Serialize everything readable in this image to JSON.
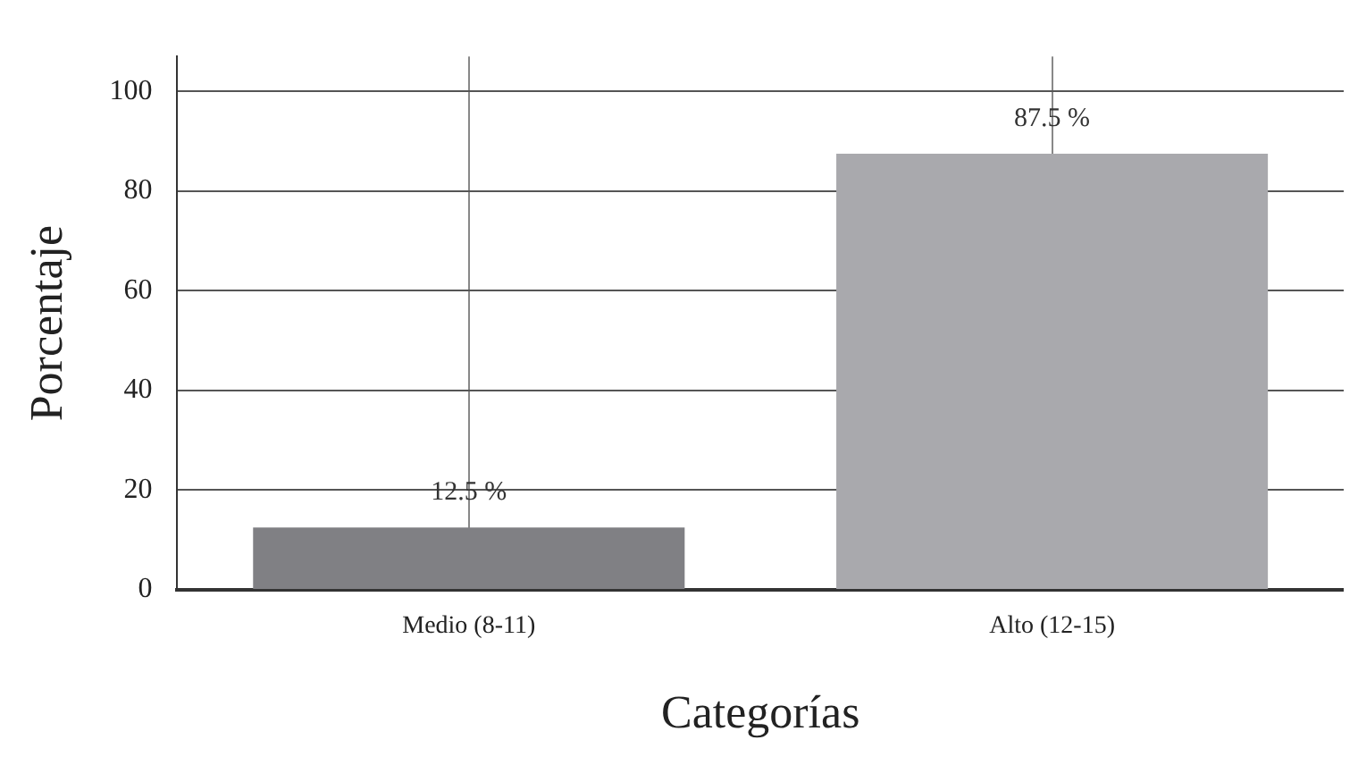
{
  "chart_data": {
    "type": "bar",
    "xlabel": "Categorías",
    "ylabel": "Porcentaje",
    "categories": [
      "Medio (8-11)",
      "Alto (12-15)"
    ],
    "values": [
      12.5,
      87.5
    ],
    "colors": [
      "#808084",
      "#a9a9ad"
    ],
    "value_labels": [
      "12.5 %",
      "87.5 %"
    ],
    "ylim": [
      0,
      107
    ],
    "yticks": [
      0,
      20,
      40,
      60,
      80,
      100
    ],
    "grid": true,
    "legend": false
  }
}
